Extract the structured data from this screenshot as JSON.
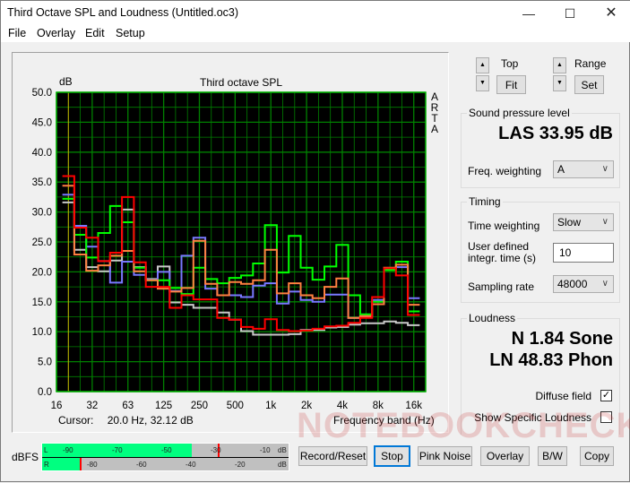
{
  "window": {
    "title": "Third Octave SPL and Loudness (Untitled.oc3)",
    "controls": [
      "minimize",
      "maximize",
      "close"
    ]
  },
  "menu": [
    {
      "label": "File"
    },
    {
      "label": "Overlay"
    },
    {
      "label": "Edit"
    },
    {
      "label": "Setup"
    }
  ],
  "chart_data": {
    "type": "line",
    "title": "Third octave SPL",
    "ylabel": "dB",
    "xlabel": "Frequency band (Hz)",
    "side_label": [
      "A",
      "R",
      "T",
      "A"
    ],
    "ylim": [
      0,
      50
    ],
    "y_ticks": [
      "0.0",
      "5.0",
      "10.0",
      "15.0",
      "20.0",
      "25.0",
      "30.0",
      "35.0",
      "40.0",
      "45.0",
      "50.0"
    ],
    "x_ticks": [
      "16",
      "32",
      "63",
      "125",
      "250",
      "500",
      "1k",
      "2k",
      "4k",
      "8k",
      "16k"
    ],
    "x_scale": "log (third-octave bands)",
    "grid": true,
    "background": "#000000",
    "grid_color": "#008000",
    "cursor": {
      "label": "Cursor:",
      "value": "20.0 Hz, 32.12 dB",
      "band": "20"
    },
    "categories": [
      "20",
      "25",
      "31.5",
      "40",
      "50",
      "63",
      "80",
      "100",
      "125",
      "160",
      "200",
      "250",
      "315",
      "400",
      "500",
      "630",
      "800",
      "1k",
      "1.25k",
      "1.6k",
      "2k",
      "2.5k",
      "3.15k",
      "4k",
      "5k",
      "6.3k",
      "8k",
      "10k",
      "12.5k",
      "16k"
    ],
    "series": [
      {
        "color": "#c8c8c8",
        "values": [
          31.6,
          23.7,
          20.8,
          20.1,
          21.9,
          30.4,
          20.8,
          18.8,
          20.9,
          14.9,
          14.5,
          14.0,
          14.0,
          13.2,
          12.0,
          10.1,
          9.5,
          9.5,
          9.5,
          9.6,
          10.3,
          10.3,
          10.7,
          10.8,
          11.2,
          11.4,
          11.4,
          11.7,
          11.5,
          11.1
        ]
      },
      {
        "color": "#7878ff",
        "values": [
          32.9,
          27.7,
          24.2,
          21.8,
          18.2,
          21.7,
          19.5,
          18.7,
          20.0,
          16.8,
          22.7,
          25.7,
          17.2,
          16.1,
          16.1,
          15.8,
          17.7,
          18.1,
          14.7,
          16.7,
          15.3,
          15.0,
          16.2,
          16.2,
          12.3,
          12.5,
          15.3,
          20.6,
          20.8,
          15.6
        ]
      },
      {
        "color": "#00ff00",
        "values": [
          32.2,
          26.2,
          22.4,
          26.5,
          31.0,
          28.3,
          20.7,
          18.6,
          18.6,
          17.3,
          16.3,
          20.7,
          18.8,
          18.1,
          19.0,
          19.4,
          21.4,
          27.8,
          19.9,
          26.0,
          20.7,
          18.7,
          20.9,
          24.5,
          16.1,
          12.9,
          15.0,
          20.3,
          21.7,
          13.4
        ]
      },
      {
        "color": "#ff8040",
        "values": [
          34.4,
          22.9,
          20.2,
          21.1,
          22.7,
          23.5,
          20.1,
          18.6,
          17.2,
          16.7,
          17.3,
          25.2,
          18.0,
          16.1,
          18.3,
          18.0,
          18.6,
          23.7,
          16.4,
          18.1,
          16.1,
          15.6,
          17.5,
          18.9,
          12.3,
          12.6,
          14.6,
          20.7,
          21.2,
          14.5
        ]
      },
      {
        "color": "#ff0000",
        "values": [
          36.0,
          27.4,
          25.7,
          21.8,
          23.2,
          32.5,
          21.6,
          17.5,
          17.5,
          14.0,
          16.1,
          15.4,
          15.4,
          12.3,
          12.0,
          10.8,
          10.5,
          12.1,
          10.3,
          10.1,
          10.2,
          10.5,
          10.9,
          11.0,
          11.5,
          12.3,
          15.8,
          20.6,
          19.4,
          12.8
        ]
      }
    ]
  },
  "controls": {
    "top_label": "Top",
    "fit_label": "Fit",
    "range_label": "Range",
    "set_label": "Set"
  },
  "spl": {
    "group_label": "Sound pressure level",
    "reading": "LAS 33.95 dB",
    "freq_weighting_label": "Freq. weighting",
    "freq_weighting_value": "A"
  },
  "timing": {
    "group_label": "Timing",
    "time_weighting_label": "Time weighting",
    "time_weighting_value": "Slow",
    "integr_label_1": "User defined",
    "integr_label_2": "integr. time (s)",
    "integr_value": "10",
    "sampling_rate_label": "Sampling rate",
    "sampling_rate_value": "48000"
  },
  "loudness": {
    "group_label": "Loudness",
    "n_reading": "N 1.84 Sone",
    "ln_reading": "LN 48.83 Phon",
    "diffuse_field_label": "Diffuse field",
    "diffuse_field_checked": true,
    "show_specific_label": "Show Specific Loudness",
    "show_specific_checked": false
  },
  "meter": {
    "label": "dBFS",
    "left_channel": "L",
    "right_channel": "R",
    "left_ticks": [
      "-90",
      "-70",
      "-50",
      "-30",
      "-10",
      "dB"
    ],
    "right_ticks": [
      "-80",
      "-60",
      "-40",
      "-20",
      "dB"
    ],
    "left_level_dbfs": -40,
    "left_peak_dbfs": -30,
    "right_level_dbfs": -85,
    "right_peak_dbfs": -85,
    "fill_color": "#00ff80",
    "peak_color": "#ff0000"
  },
  "buttons": {
    "record_reset": "Record/Reset",
    "stop": "Stop",
    "pink_noise": "Pink Noise",
    "overlay": "Overlay",
    "bw": "B/W",
    "copy": "Copy"
  },
  "watermark": "NOTEBOOKCHECK"
}
